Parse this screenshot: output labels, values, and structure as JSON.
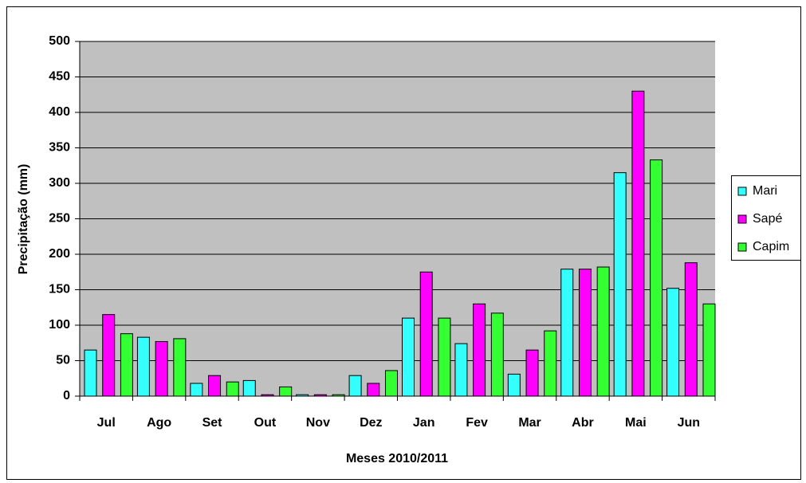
{
  "chart_data": {
    "type": "bar",
    "x_label": "Meses 2010/2011",
    "y_label": "Precipitação (mm)",
    "categories": [
      "Jul",
      "Ago",
      "Set",
      "Out",
      "Nov",
      "Dez",
      "Jan",
      "Fev",
      "Mar",
      "Abr",
      "Mai",
      "Jun"
    ],
    "series": [
      {
        "name": "Mari",
        "color": "#33ffff",
        "values": [
          65,
          83,
          18,
          22,
          2,
          29,
          110,
          74,
          31,
          179,
          315,
          152
        ]
      },
      {
        "name": "Sapé",
        "color": "#ff00ff",
        "values": [
          115,
          77,
          29,
          2,
          2,
          18,
          175,
          130,
          65,
          179,
          430,
          188
        ]
      },
      {
        "name": "Capim",
        "color": "#33ff33",
        "values": [
          88,
          81,
          20,
          13,
          2,
          36,
          110,
          117,
          92,
          182,
          333,
          130
        ]
      }
    ],
    "ylim": [
      0,
      500
    ],
    "yticks": [
      0,
      50,
      100,
      150,
      200,
      250,
      300,
      350,
      400,
      450,
      500
    ],
    "grid": true,
    "legend": "right"
  }
}
